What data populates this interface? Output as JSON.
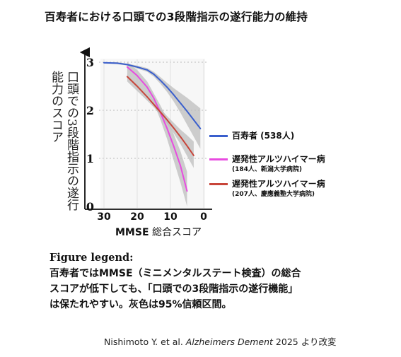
{
  "title": "百寿者における口頭での3段階指示の遂行能力の維持",
  "chart_data": {
    "type": "line",
    "title": "",
    "ylabel": "口頭での3段階指示の遂行能力のスコア",
    "xlabel_bold": "MMSE",
    "xlabel_rest": " 総合スコア",
    "x_ticks": [
      "30",
      "20",
      "10",
      "0"
    ],
    "y_ticks": [
      "0",
      "1",
      "2",
      "3"
    ],
    "xlim": [
      30,
      0
    ],
    "ylim": [
      0,
      3
    ],
    "series": [
      {
        "name": "百寿者 (538人)",
        "sub": "",
        "color": "#3a5fcd",
        "x": [
          30,
          26,
          23,
          20,
          17,
          15,
          13,
          11,
          9,
          7,
          5,
          3,
          1
        ],
        "y": [
          2.99,
          2.98,
          2.95,
          2.9,
          2.84,
          2.75,
          2.62,
          2.48,
          2.32,
          2.15,
          1.98,
          1.8,
          1.62
        ],
        "lower": [
          2.97,
          2.96,
          2.93,
          2.87,
          2.8,
          2.7,
          2.55,
          2.38,
          2.18,
          1.95,
          1.7,
          1.45,
          1.2
        ],
        "upper": [
          3.0,
          3.0,
          2.97,
          2.93,
          2.88,
          2.8,
          2.69,
          2.57,
          2.46,
          2.36,
          2.26,
          2.15,
          2.04
        ]
      },
      {
        "name": "遅発性アルツハイマー病",
        "sub": "(184人、新潟大学病院)",
        "color": "#e84be0",
        "x": [
          23,
          20,
          17,
          15,
          13,
          11,
          9,
          7,
          5
        ],
        "y": [
          2.9,
          2.72,
          2.48,
          2.25,
          1.95,
          1.62,
          1.25,
          0.85,
          0.32
        ],
        "lower": [
          2.8,
          2.6,
          2.38,
          2.15,
          1.8,
          1.4,
          0.95,
          0.5,
          0.0
        ],
        "upper": [
          3.0,
          2.84,
          2.6,
          2.35,
          2.1,
          1.82,
          1.5,
          1.15,
          0.72
        ]
      },
      {
        "name": "遅発性アルツハイマー病",
        "sub": "(207人、慶應義塾大学病院)",
        "color": "#c8453a",
        "x": [
          23,
          20,
          17,
          15,
          13,
          11,
          9,
          7,
          5,
          3
        ],
        "y": [
          2.7,
          2.5,
          2.28,
          2.12,
          1.96,
          1.8,
          1.63,
          1.45,
          1.26,
          1.06
        ],
        "lower": [
          2.6,
          2.4,
          2.2,
          2.06,
          1.9,
          1.72,
          1.52,
          1.3,
          1.05,
          0.8
        ],
        "upper": [
          2.8,
          2.6,
          2.38,
          2.2,
          2.03,
          1.88,
          1.74,
          1.6,
          1.48,
          1.35
        ]
      }
    ],
    "ci_color": "#bdbdbd",
    "grid": true
  },
  "figure_legend": {
    "heading": "Figure legend:",
    "lines": [
      "百寿者ではMMSE（ミニメンタルステート検査）の総合",
      "スコアが低下しても、「口頭での3段階指示の遂行機能」",
      "は保たれやすい。灰色は95%信頼区間。"
    ]
  },
  "citation": {
    "authors": "Nishimoto Y. et al. ",
    "journal": "Alzheimers Dement",
    "rest": " 2025 より改変"
  }
}
